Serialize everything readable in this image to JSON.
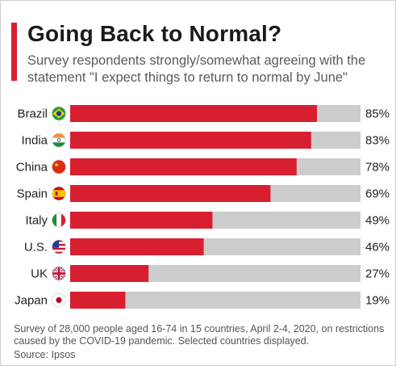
{
  "title": "Going Back to Normal?",
  "subtitle": "Survey respondents strongly/somewhat agreeing with the statement \"I expect things to return to normal by June\"",
  "footnote": "Survey of 28,000 people aged 16-74 in 15 countries, April 2-4, 2020, on restrictions caused by the COVID-19 pandemic. Selected countries displayed.",
  "source": "Source: Ipsos",
  "colors": {
    "bar": "#d71f30",
    "track": "#cccccc",
    "accent": "#d71f30"
  },
  "chart_data": {
    "type": "bar",
    "orientation": "horizontal",
    "categories": [
      "Brazil",
      "India",
      "China",
      "Spain",
      "Italy",
      "U.S.",
      "UK",
      "Japan"
    ],
    "values": [
      85,
      83,
      78,
      69,
      49,
      46,
      27,
      19
    ],
    "value_labels": [
      "85%",
      "83%",
      "78%",
      "69%",
      "49%",
      "46%",
      "27%",
      "19%"
    ],
    "flags": [
      "brazil-flag-icon",
      "india-flag-icon",
      "china-flag-icon",
      "spain-flag-icon",
      "italy-flag-icon",
      "us-flag-icon",
      "uk-flag-icon",
      "japan-flag-icon"
    ],
    "xlim": [
      0,
      100
    ],
    "grid": false,
    "legend": "none"
  }
}
